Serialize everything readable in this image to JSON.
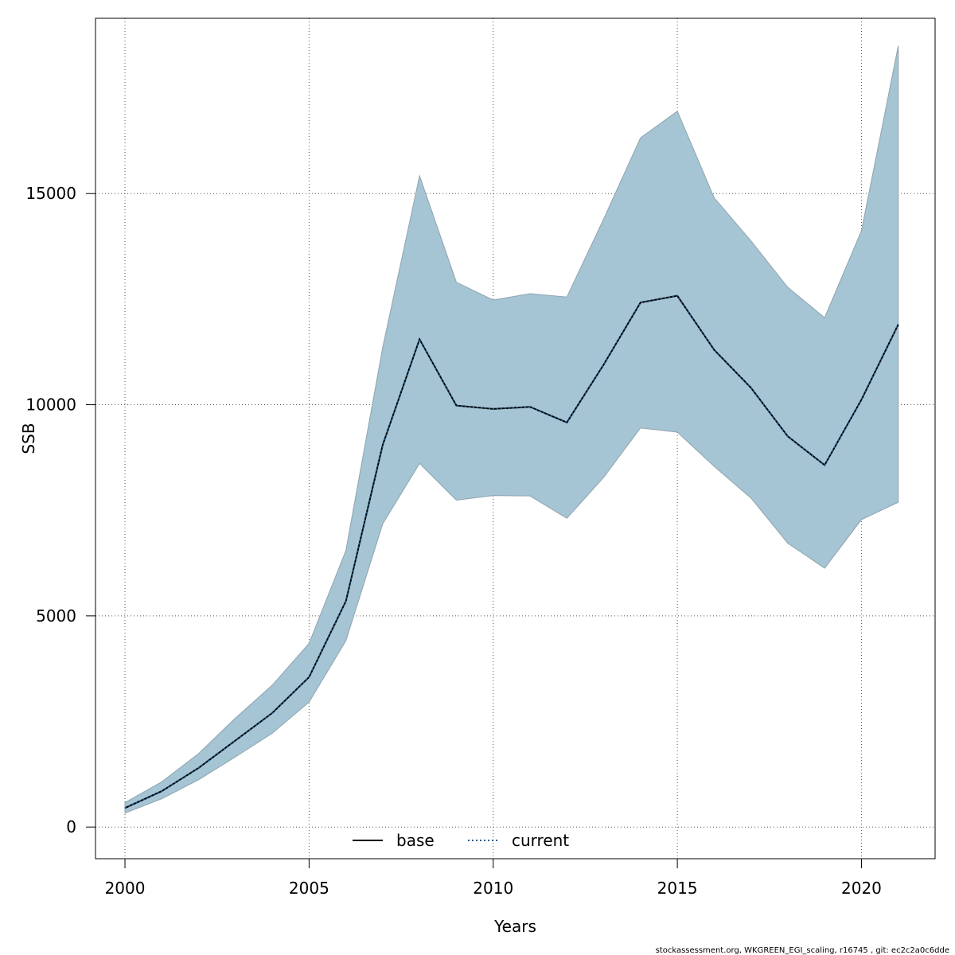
{
  "chart_data": {
    "type": "line",
    "xlabel": "Years",
    "ylabel": "SSB",
    "xlim": [
      1999.2,
      2022.0
    ],
    "ylim": [
      -750,
      19150
    ],
    "xticks": [
      2000,
      2005,
      2010,
      2015,
      2020
    ],
    "yticks": [
      0,
      5000,
      10000,
      15000
    ],
    "grid": true,
    "legend_placement": "bottom-center",
    "x": [
      2000,
      2001,
      2002,
      2003,
      2004,
      2005,
      2006,
      2007,
      2008,
      2009,
      2010,
      2011,
      2012,
      2013,
      2014,
      2015,
      2016,
      2017,
      2018,
      2019,
      2020,
      2021
    ],
    "series": [
      {
        "name": "base",
        "style": "solid",
        "color": "#000000",
        "values": [
          450,
          850,
          1400,
          2050,
          2700,
          3550,
          5350,
          9050,
          11550,
          9980,
          9900,
          9950,
          9580,
          10950,
          12420,
          12580,
          11300,
          10400,
          9250,
          8570,
          10120,
          11900
        ]
      },
      {
        "name": "current",
        "style": "dotted",
        "color": "#1a5a8a",
        "values": [
          450,
          850,
          1400,
          2050,
          2700,
          3550,
          5350,
          9050,
          11550,
          9980,
          9900,
          9950,
          9580,
          10950,
          12420,
          12580,
          11300,
          10400,
          9250,
          8570,
          10120,
          11900
        ]
      }
    ],
    "band": {
      "color": "#a5c4d4",
      "lower": [
        330,
        670,
        1120,
        1660,
        2220,
        2960,
        4410,
        7180,
        8610,
        7740,
        7850,
        7840,
        7310,
        8280,
        9450,
        9350,
        8540,
        7790,
        6720,
        6130,
        7280,
        7690
      ],
      "upper": [
        580,
        1070,
        1740,
        2580,
        3360,
        4350,
        6550,
        11360,
        15420,
        12900,
        12480,
        12630,
        12550,
        14400,
        16320,
        16950,
        14900,
        13880,
        12780,
        12060,
        14120,
        18500
      ]
    }
  },
  "footer": "stockassessment.org, WKGREEN_EGI_scaling, r16745 , git: ec2c2a0c6dde"
}
